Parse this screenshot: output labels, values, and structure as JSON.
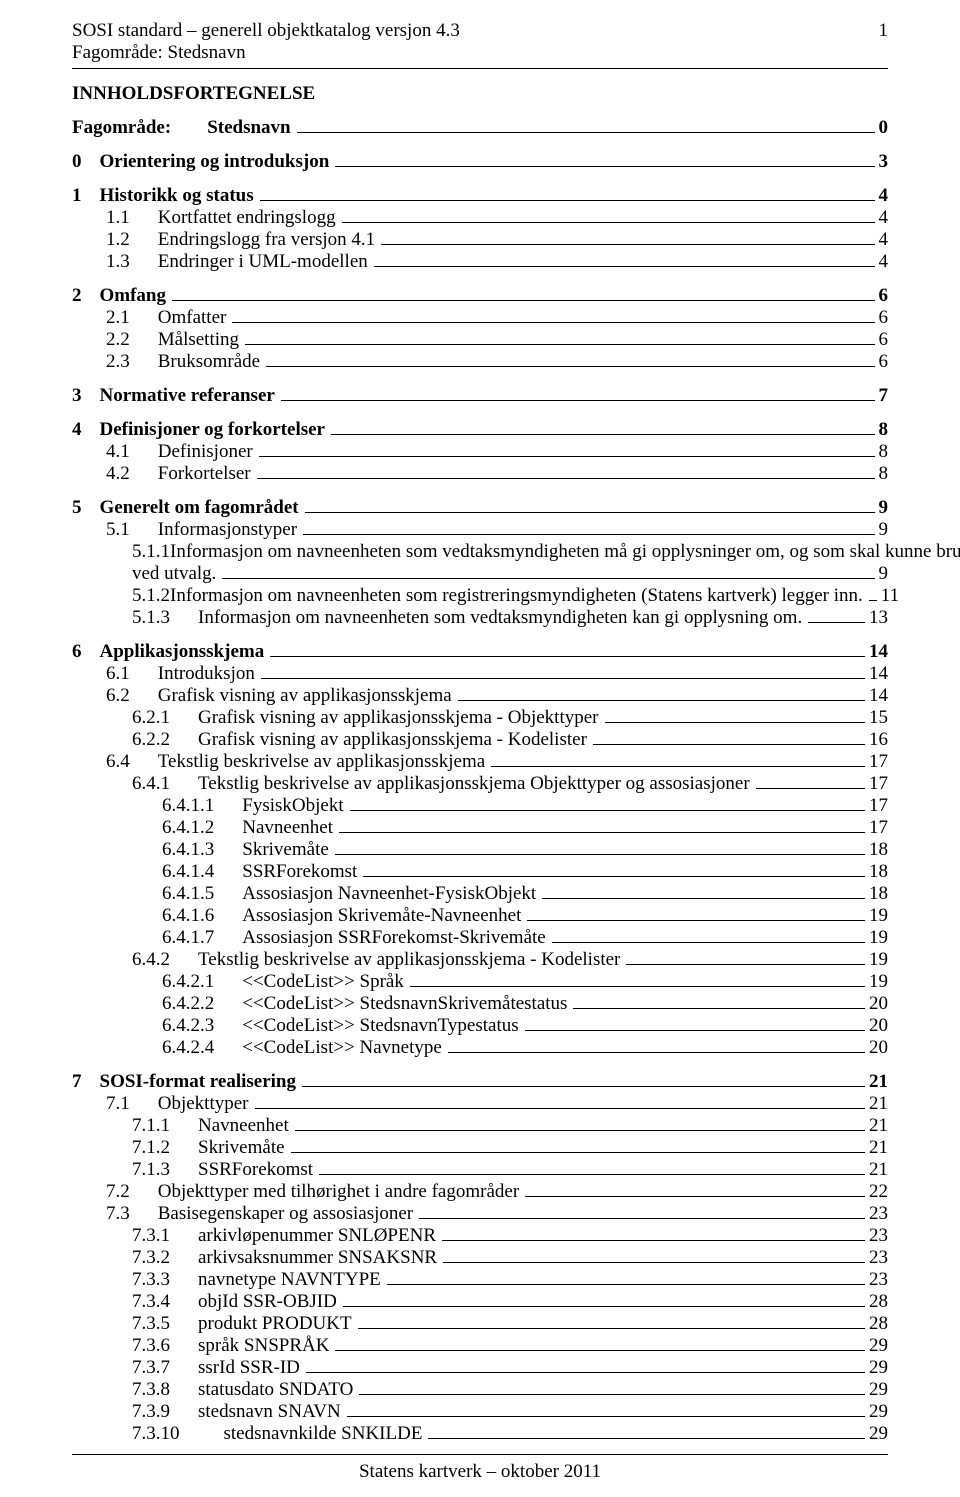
{
  "header": {
    "line1_left": "SOSI standard – generell objektkatalog versjon 4.3",
    "line1_right": "1",
    "line2": "Fagområde: Stedsnavn"
  },
  "toc_title": "INNHOLDSFORTEGNELSE",
  "footer": "Statens kartverk – oktober 2011",
  "entries": [
    {
      "lvl": 1,
      "num": "Fagområde:",
      "gap": "gap8",
      "label": "Stedsnavn",
      "page": "0"
    },
    {
      "lvl": 1,
      "num": "0",
      "gap": "gap4",
      "label": "Orientering og introduksjon",
      "page": "3"
    },
    {
      "lvl": 1,
      "num": "1",
      "gap": "gap4",
      "label": "Historikk og status",
      "page": "4"
    },
    {
      "lvl": 2,
      "num": "1.1",
      "gap": "gap6",
      "label": "Kortfattet endringslogg",
      "page": "4"
    },
    {
      "lvl": 2,
      "num": "1.2",
      "gap": "gap6",
      "label": "Endringslogg fra versjon 4.1",
      "page": "4"
    },
    {
      "lvl": 2,
      "num": "1.3",
      "gap": "gap6",
      "label": "Endringer i UML-modellen",
      "page": "4"
    },
    {
      "lvl": 1,
      "num": "2",
      "gap": "gap4",
      "label": "Omfang",
      "page": "6"
    },
    {
      "lvl": 2,
      "num": "2.1",
      "gap": "gap6",
      "label": "Omfatter",
      "page": "6"
    },
    {
      "lvl": 2,
      "num": "2.2",
      "gap": "gap6",
      "label": "Målsetting",
      "page": "6"
    },
    {
      "lvl": 2,
      "num": "2.3",
      "gap": "gap6",
      "label": "Bruksområde",
      "page": "6"
    },
    {
      "lvl": 1,
      "num": "3",
      "gap": "gap4",
      "label": "Normative referanser",
      "page": "7"
    },
    {
      "lvl": 1,
      "num": "4",
      "gap": "gap4",
      "label": "Definisjoner og forkortelser",
      "page": "8"
    },
    {
      "lvl": 2,
      "num": "4.1",
      "gap": "gap6",
      "label": "Definisjoner",
      "page": "8"
    },
    {
      "lvl": 2,
      "num": "4.2",
      "gap": "gap6",
      "label": "Forkortelser",
      "page": "8"
    },
    {
      "lvl": 1,
      "num": "5",
      "gap": "gap4",
      "label": "Generelt om fagområdet",
      "page": "9"
    },
    {
      "lvl": 2,
      "num": "5.1",
      "gap": "gap6",
      "label": "Informasjonstyper",
      "page": "9"
    },
    {
      "lvl": 3,
      "num": "5.1.1",
      "gap": "gap6",
      "label": "Informasjon om navneenheten som vedtaksmyndigheten må gi opplysninger om, og som skal kunne brukes",
      "wrap": true,
      "cont": "ved utvalg.",
      "page": "9"
    },
    {
      "lvl": 3,
      "num": "5.1.2",
      "gap": "gap6",
      "label": "Informasjon om navneenheten som registreringsmyndigheten (Statens kartverk) legger inn.",
      "page": "11"
    },
    {
      "lvl": 3,
      "num": "5.1.3",
      "gap": "gap6",
      "label": "Informasjon om navneenheten som vedtaksmyndigheten kan gi opplysning om.",
      "page": "13"
    },
    {
      "lvl": 1,
      "num": "6",
      "gap": "gap4",
      "label": "Applikasjonsskjema",
      "page": "14"
    },
    {
      "lvl": 2,
      "num": "6.1",
      "gap": "gap6",
      "label": "Introduksjon",
      "page": "14"
    },
    {
      "lvl": 2,
      "num": "6.2",
      "gap": "gap6",
      "label": "Grafisk visning av applikasjonsskjema",
      "page": "14"
    },
    {
      "lvl": 3,
      "num": "6.2.1",
      "gap": "gap6",
      "label": "Grafisk visning av applikasjonsskjema - Objekttyper",
      "page": "15"
    },
    {
      "lvl": 3,
      "num": "6.2.2",
      "gap": "gap6",
      "label": "Grafisk visning av applikasjonsskjema - Kodelister",
      "page": "16"
    },
    {
      "lvl": 2,
      "num": "6.4",
      "gap": "gap6",
      "label": "Tekstlig beskrivelse av applikasjonsskjema",
      "page": "17"
    },
    {
      "lvl": 3,
      "num": "6.4.1",
      "gap": "gap6",
      "label": "Tekstlig beskrivelse av applikasjonsskjema Objekttyper og assosiasjoner",
      "page": "17"
    },
    {
      "lvl": 4,
      "num": "6.4.1.1",
      "gap": "gap6",
      "label": "FysiskObjekt",
      "page": "17"
    },
    {
      "lvl": 4,
      "num": "6.4.1.2",
      "gap": "gap6",
      "label": "Navneenhet",
      "page": "17"
    },
    {
      "lvl": 4,
      "num": "6.4.1.3",
      "gap": "gap6",
      "label": "Skrivemåte",
      "page": "18"
    },
    {
      "lvl": 4,
      "num": "6.4.1.4",
      "gap": "gap6",
      "label": "SSRForekomst",
      "page": "18"
    },
    {
      "lvl": 4,
      "num": "6.4.1.5",
      "gap": "gap6",
      "label": "Assosiasjon Navneenhet-FysiskObjekt",
      "page": "18"
    },
    {
      "lvl": 4,
      "num": "6.4.1.6",
      "gap": "gap6",
      "label": "Assosiasjon Skrivemåte-Navneenhet",
      "page": "19"
    },
    {
      "lvl": 4,
      "num": "6.4.1.7",
      "gap": "gap6",
      "label": "Assosiasjon SSRForekomst-Skrivemåte",
      "page": "19"
    },
    {
      "lvl": 3,
      "num": "6.4.2",
      "gap": "gap6",
      "label": "Tekstlig beskrivelse av applikasjonsskjema - Kodelister",
      "page": "19"
    },
    {
      "lvl": 4,
      "num": "6.4.2.1",
      "gap": "gap6",
      "label": "<<CodeList>> Språk",
      "page": "19"
    },
    {
      "lvl": 4,
      "num": "6.4.2.2",
      "gap": "gap6",
      "label": "<<CodeList>> StedsnavnSkrivemåtestatus",
      "page": "20"
    },
    {
      "lvl": 4,
      "num": "6.4.2.3",
      "gap": "gap6",
      "label": "<<CodeList>> StedsnavnTypestatus",
      "page": "20"
    },
    {
      "lvl": 4,
      "num": "6.4.2.4",
      "gap": "gap6",
      "label": "<<CodeList>> Navnetype",
      "page": "20"
    },
    {
      "lvl": 1,
      "num": "7",
      "gap": "gap4",
      "label": "SOSI-format realisering",
      "page": "21"
    },
    {
      "lvl": 2,
      "num": "7.1",
      "gap": "gap6",
      "label": "Objekttyper",
      "page": "21"
    },
    {
      "lvl": 3,
      "num": "7.1.1",
      "gap": "gap6",
      "label": "Navneenhet",
      "page": "21"
    },
    {
      "lvl": 3,
      "num": "7.1.2",
      "gap": "gap6",
      "label": "Skrivemåte",
      "page": "21"
    },
    {
      "lvl": 3,
      "num": "7.1.3",
      "gap": "gap6",
      "label": "SSRForekomst",
      "page": "21"
    },
    {
      "lvl": 2,
      "num": "7.2",
      "gap": "gap6",
      "label": "Objekttyper med tilhørighet i andre fagområder",
      "page": "22"
    },
    {
      "lvl": 2,
      "num": "7.3",
      "gap": "gap6",
      "label": "Basisegenskaper og assosiasjoner",
      "page": "23"
    },
    {
      "lvl": 3,
      "num": "7.3.1",
      "gap": "gap6",
      "label": "arkivløpenummer SNLØPENR",
      "page": "23"
    },
    {
      "lvl": 3,
      "num": "7.3.2",
      "gap": "gap6",
      "label": "arkivsaksnummer SNSAKSNR",
      "page": "23"
    },
    {
      "lvl": 3,
      "num": "7.3.3",
      "gap": "gap6",
      "label": "navnetype NAVNTYPE",
      "page": "23"
    },
    {
      "lvl": 3,
      "num": "7.3.4",
      "gap": "gap6",
      "label": "objId SSR-OBJID",
      "page": "28"
    },
    {
      "lvl": 3,
      "num": "7.3.5",
      "gap": "gap6",
      "label": "produkt PRODUKT",
      "page": "28"
    },
    {
      "lvl": 3,
      "num": "7.3.6",
      "gap": "gap6",
      "label": "språk SNSPRÅK",
      "page": "29"
    },
    {
      "lvl": 3,
      "num": "7.3.7",
      "gap": "gap6",
      "label": "ssrId SSR-ID",
      "page": "29"
    },
    {
      "lvl": 3,
      "num": "7.3.8",
      "gap": "gap6",
      "label": "statusdato SNDATO",
      "page": "29"
    },
    {
      "lvl": 3,
      "num": "7.3.9",
      "gap": "gap6",
      "label": "stedsnavn SNAVN",
      "page": "29"
    },
    {
      "lvl": 3,
      "num": "7.3.10",
      "gap": "gap10",
      "label": "stedsnavnkilde SNKILDE",
      "page": "29"
    }
  ]
}
